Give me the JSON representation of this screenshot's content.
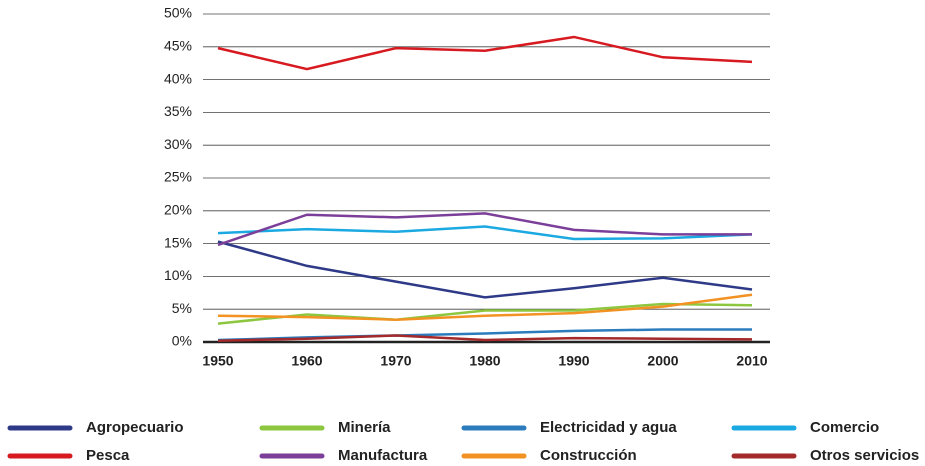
{
  "chart_data": {
    "type": "line",
    "categories": [
      "1950",
      "1960",
      "1970",
      "1980",
      "1990",
      "2000",
      "2010"
    ],
    "ylim": [
      0,
      50
    ],
    "yticks": [
      {
        "value": 0,
        "label": "0%"
      },
      {
        "value": 5,
        "label": "5%"
      },
      {
        "value": 10,
        "label": "10%"
      },
      {
        "value": 15,
        "label": "15%"
      },
      {
        "value": 20,
        "label": "20%"
      },
      {
        "value": 25,
        "label": "25%"
      },
      {
        "value": 30,
        "label": "30%"
      },
      {
        "value": 35,
        "label": "35%"
      },
      {
        "value": 40,
        "label": "40%"
      },
      {
        "value": 45,
        "label": "45%"
      },
      {
        "value": 50,
        "label": "50%"
      }
    ],
    "grid": true,
    "series": [
      {
        "name": "Agropecuario",
        "color": "#2e3a87",
        "values": [
          15.3,
          11.6,
          9.2,
          6.8,
          8.2,
          9.8,
          8.0
        ]
      },
      {
        "name": "Minería",
        "color": "#8dc63f",
        "values": [
          2.8,
          4.2,
          3.4,
          4.8,
          4.8,
          5.8,
          5.6
        ]
      },
      {
        "name": "Electricidad y agua",
        "color": "#2b7bbd",
        "values": [
          0.3,
          0.7,
          1.0,
          1.3,
          1.7,
          1.9,
          1.9
        ]
      },
      {
        "name": "Comercio",
        "color": "#1ba9e1",
        "values": [
          16.6,
          17.2,
          16.8,
          17.6,
          15.7,
          15.8,
          16.4
        ]
      },
      {
        "name": "Pesca",
        "color": "#d71920",
        "values": [
          44.8,
          41.6,
          44.8,
          44.4,
          46.5,
          43.4,
          42.7
        ]
      },
      {
        "name": "Manufactura",
        "color": "#7b3f99",
        "values": [
          14.8,
          19.4,
          19.0,
          19.6,
          17.1,
          16.4,
          16.4
        ]
      },
      {
        "name": "Construcción",
        "color": "#f29222",
        "values": [
          4.0,
          3.8,
          3.4,
          4.0,
          4.4,
          5.4,
          7.2
        ]
      },
      {
        "name": "Otros servicios",
        "color": "#a3292a",
        "values": [
          0.2,
          0.5,
          1.0,
          0.3,
          0.6,
          0.5,
          0.4
        ]
      }
    ]
  }
}
